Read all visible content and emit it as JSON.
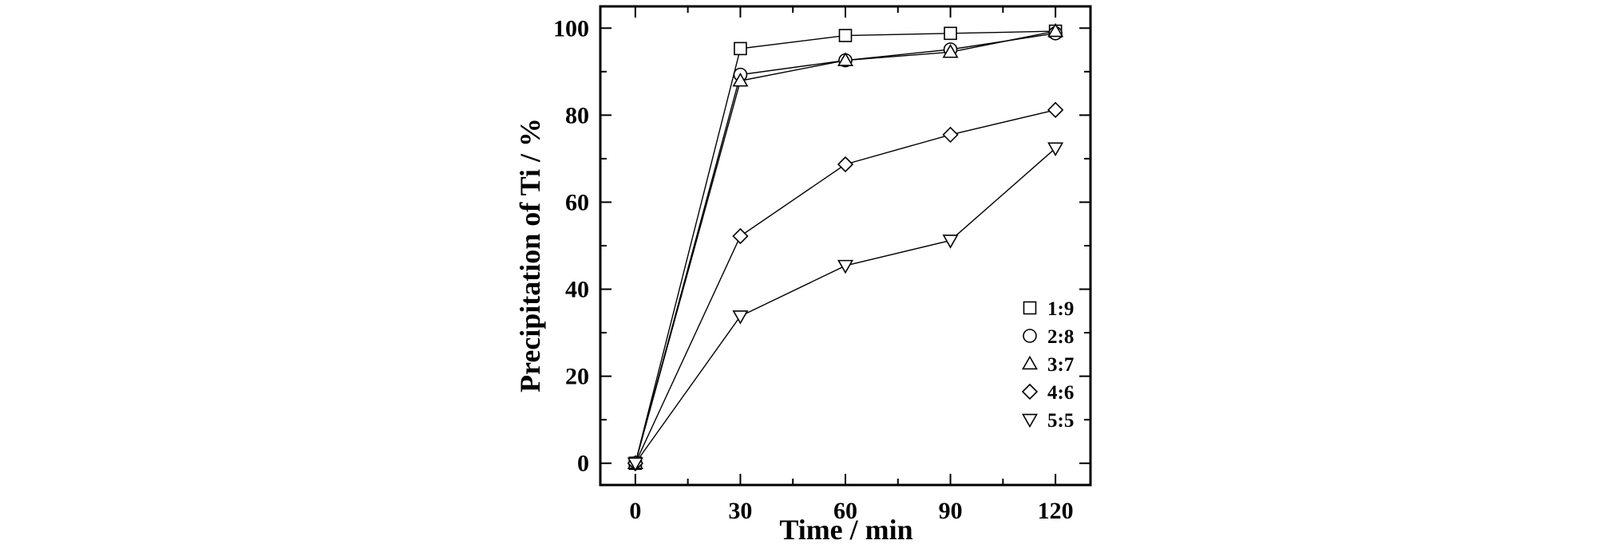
{
  "chart_data": {
    "type": "line",
    "title": "",
    "xlabel": "Time / min",
    "ylabel": "Precipitation of Ti / %",
    "xlim": [
      -10,
      130
    ],
    "ylim": [
      -5,
      105
    ],
    "xticks": [
      0,
      30,
      60,
      90,
      120
    ],
    "xtick_labels": [
      "0",
      "30",
      "60",
      "90",
      "120"
    ],
    "yticks": [
      0,
      20,
      40,
      60,
      80,
      100
    ],
    "ytick_labels": [
      "0",
      "20",
      "40",
      "60",
      "80",
      "100"
    ],
    "grid": false,
    "legend_position": "lower-right",
    "x": [
      0,
      30,
      60,
      90,
      120
    ],
    "series": [
      {
        "name": "1:9",
        "marker": "square",
        "values": [
          0,
          95.3,
          98.3,
          98.8,
          99.3
        ]
      },
      {
        "name": "2:8",
        "marker": "circle",
        "values": [
          0,
          89.3,
          92.6,
          95.1,
          98.8
        ]
      },
      {
        "name": "3:7",
        "marker": "triangle-up",
        "values": [
          0,
          87.9,
          92.6,
          94.5,
          99.3
        ]
      },
      {
        "name": "4:6",
        "marker": "diamond",
        "values": [
          0,
          52.2,
          68.7,
          75.5,
          81.2
        ]
      },
      {
        "name": "5:5",
        "marker": "triangle-down",
        "values": [
          0,
          33.8,
          45.4,
          51.2,
          72.4
        ]
      }
    ],
    "colors": {
      "line": "#000000",
      "marker_fill": "#ffffff",
      "axis": "#000000"
    }
  }
}
